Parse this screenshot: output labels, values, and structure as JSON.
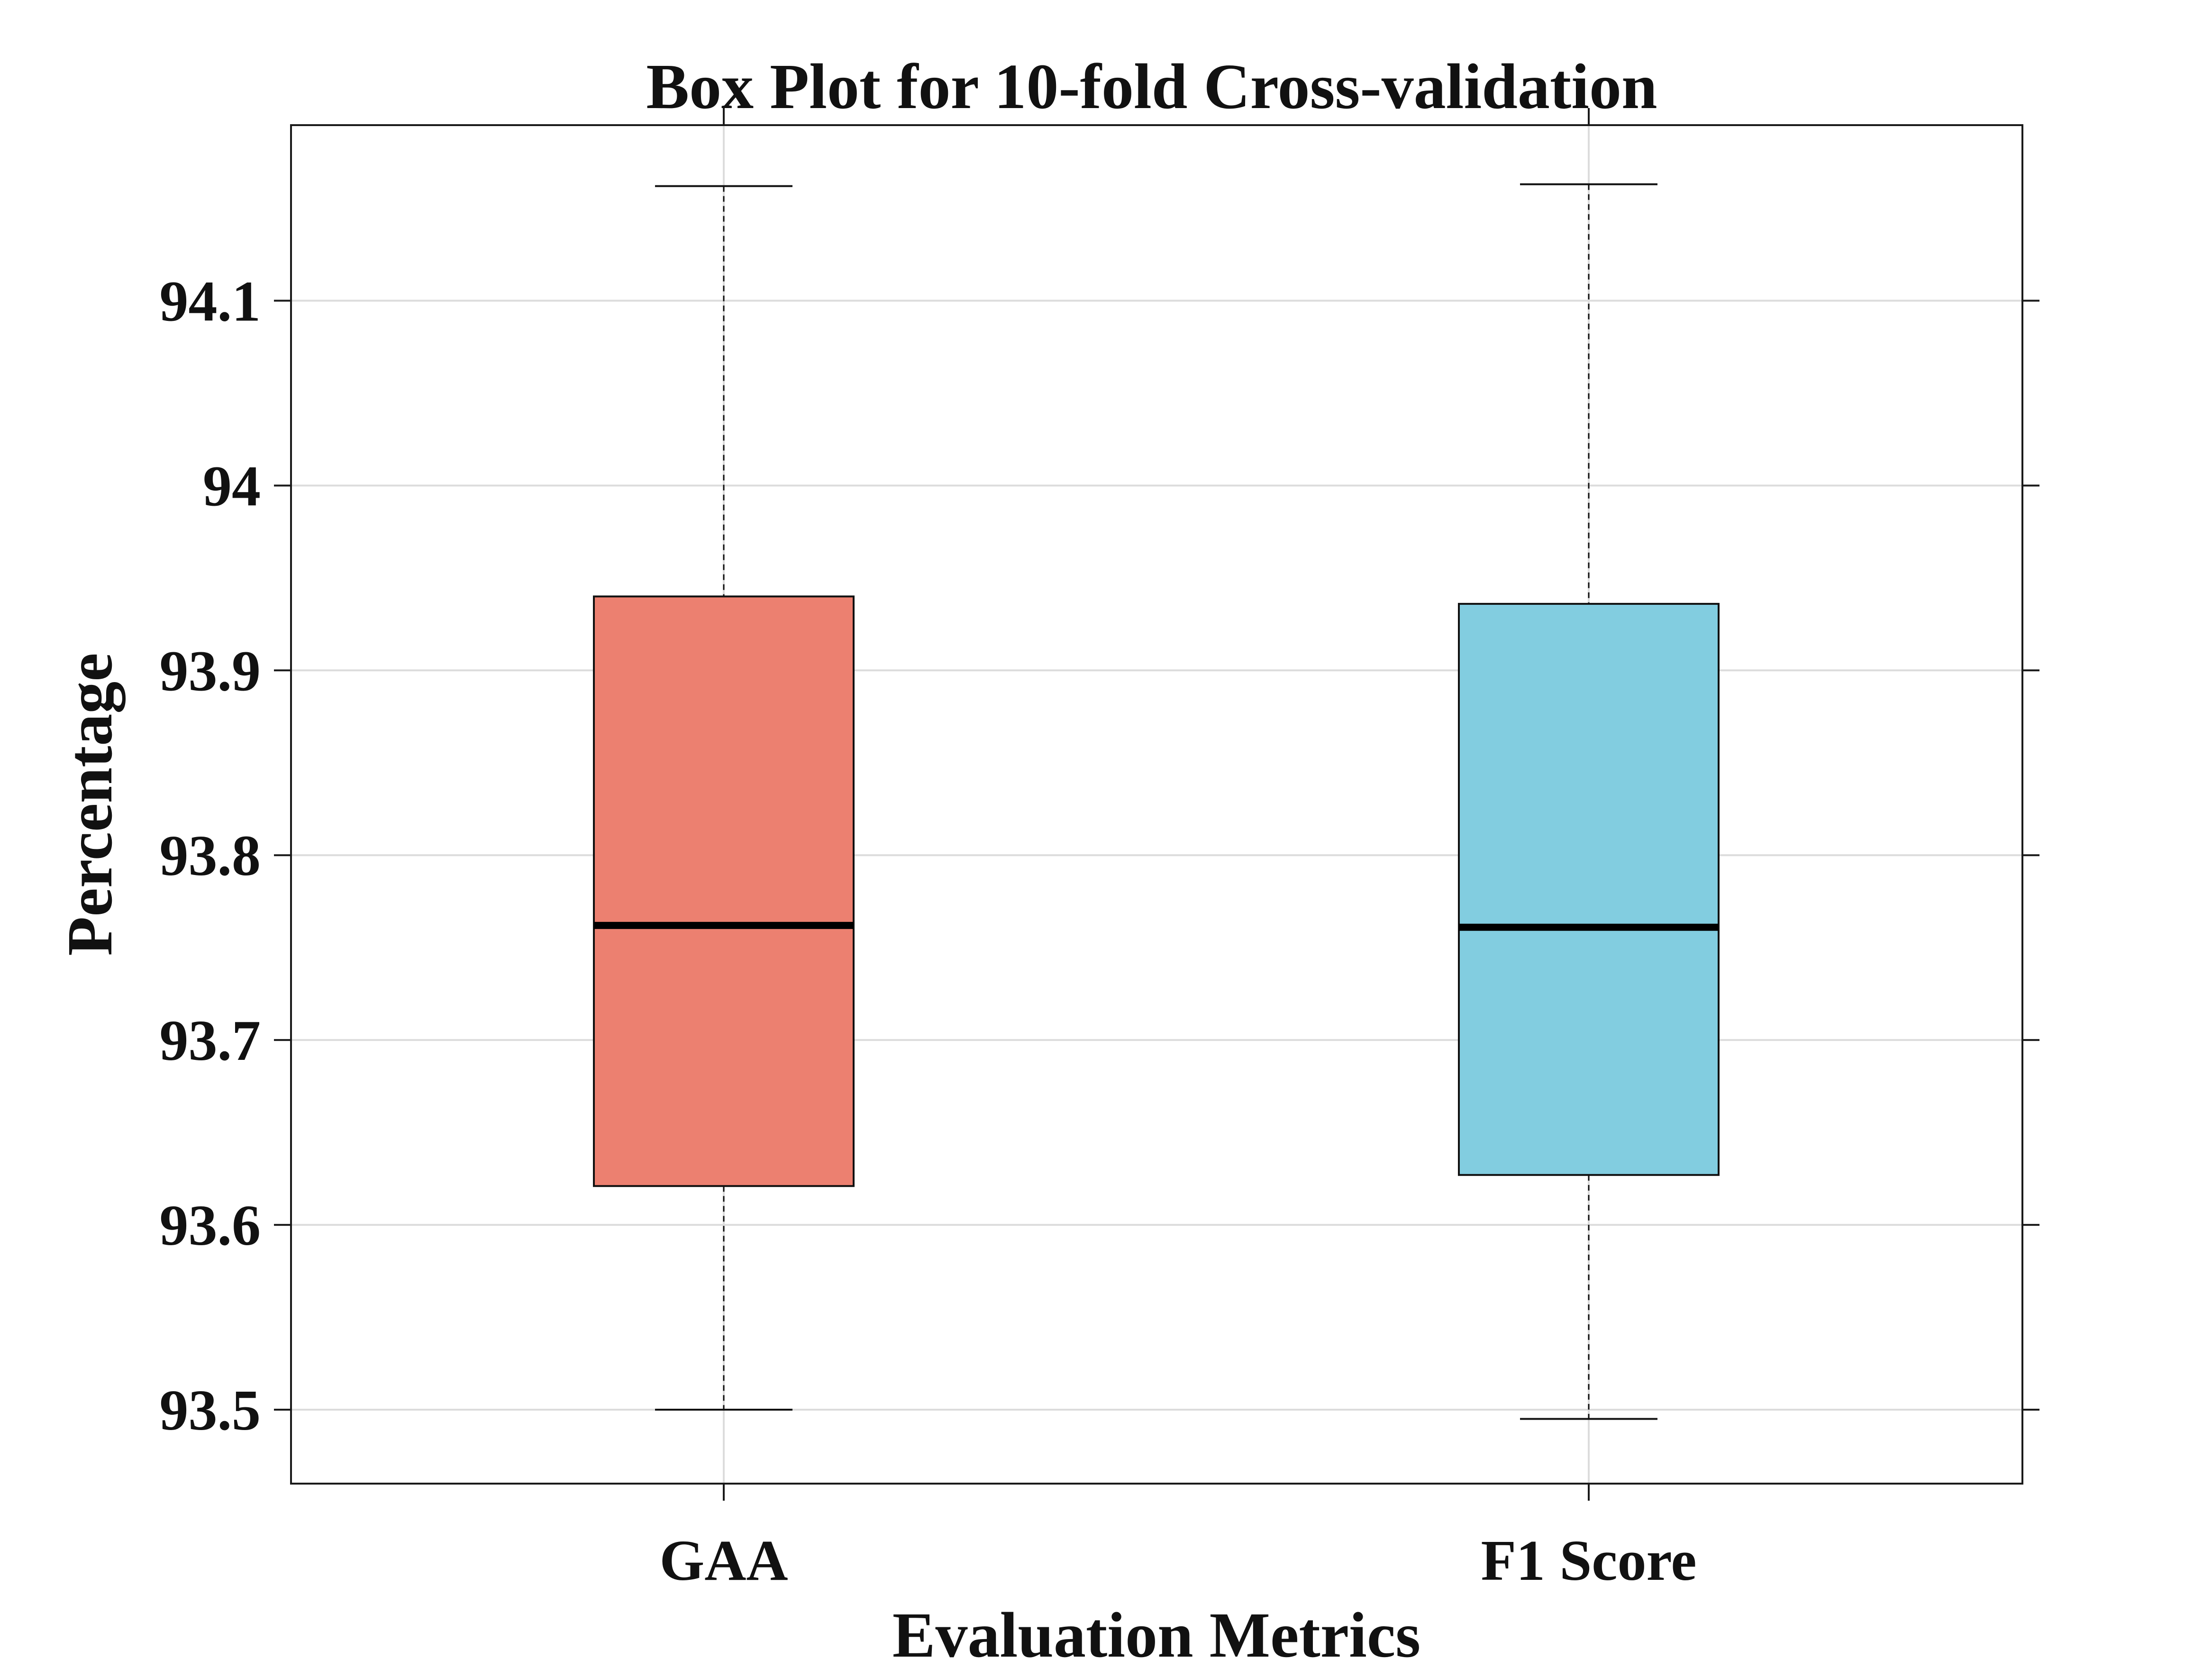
{
  "chart_data": {
    "type": "box",
    "title": "Box Plot for 10-fold Cross-validation",
    "xlabel": "Evaluation Metrics",
    "ylabel": "Percentage",
    "ylim": [
      93.46,
      94.195
    ],
    "yticks": [
      93.5,
      93.6,
      93.7,
      93.8,
      93.9,
      94,
      94.1
    ],
    "ytick_labels": [
      "93.5",
      "93.6",
      "93.7",
      "93.8",
      "93.9",
      "94",
      "94.1"
    ],
    "grid": true,
    "categories": [
      "GAA",
      "F1 Score"
    ],
    "series": [
      {
        "name": "GAA",
        "min": 93.5,
        "q1": 93.621,
        "median": 93.762,
        "q3": 93.94,
        "max": 94.162,
        "color": "#ec8070"
      },
      {
        "name": "F1 Score",
        "min": 93.495,
        "q1": 93.627,
        "median": 93.761,
        "q3": 93.936,
        "max": 94.163,
        "color": "#82cde0"
      }
    ]
  }
}
